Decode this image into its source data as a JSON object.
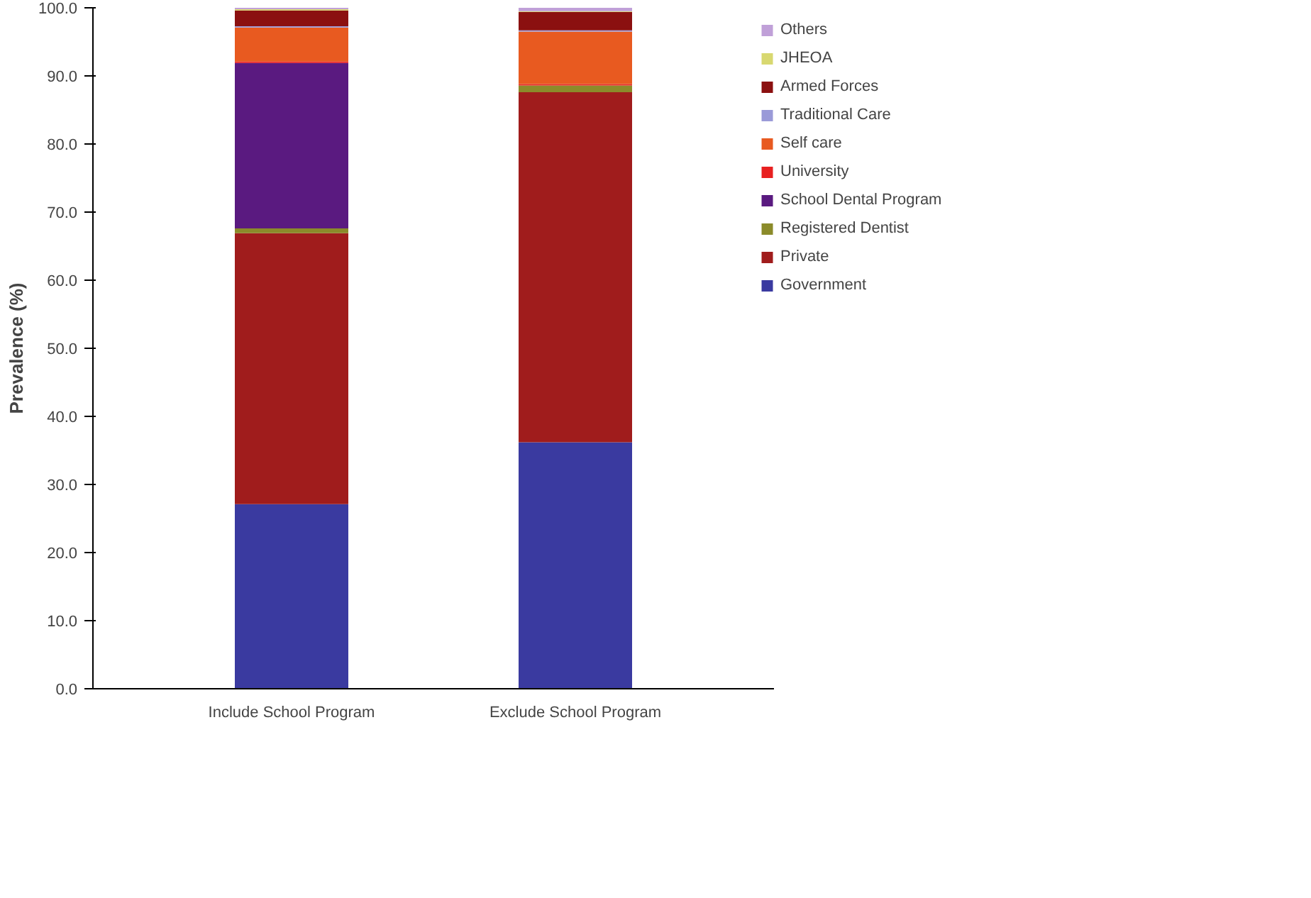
{
  "chart_data": {
    "type": "bar",
    "stacked": true,
    "ylabel": "Prevalence (%)",
    "categories": [
      "Include School Program",
      "Exclude School Program"
    ],
    "series": [
      {
        "name": "Government",
        "color": "#3a3aa0",
        "values": [
          27.1,
          36.2
        ]
      },
      {
        "name": "Private",
        "color": "#a01c1c",
        "values": [
          39.8,
          51.4
        ]
      },
      {
        "name": "Registered Dentist",
        "color": "#8b8b2a",
        "values": [
          0.7,
          1.0
        ]
      },
      {
        "name": "School Dental Program",
        "color": "#5a1a80",
        "values": [
          24.3,
          0
        ]
      },
      {
        "name": "University",
        "color": "#e82020",
        "values": [
          0.2,
          0.2
        ]
      },
      {
        "name": "Self care",
        "color": "#e85a20",
        "values": [
          5.0,
          7.7
        ]
      },
      {
        "name": "Traditional Care",
        "color": "#9a9ad8",
        "values": [
          0.2,
          0.2
        ]
      },
      {
        "name": "Armed Forces",
        "color": "#8b1010",
        "values": [
          2.3,
          2.7
        ]
      },
      {
        "name": "JHEOA",
        "color": "#d8d870",
        "values": [
          0.2,
          0.1
        ]
      },
      {
        "name": "Others",
        "color": "#c0a0d8",
        "values": [
          0.2,
          0.5
        ]
      }
    ],
    "ylim": [
      0,
      100
    ],
    "yticks": [
      {
        "value": 0,
        "label": "0.0"
      },
      {
        "value": 10,
        "label": "10.0"
      },
      {
        "value": 20,
        "label": "20.0"
      },
      {
        "value": 30,
        "label": "30.0"
      },
      {
        "value": 40,
        "label": "40.0"
      },
      {
        "value": 50,
        "label": "50.0"
      },
      {
        "value": 60,
        "label": "60.0"
      },
      {
        "value": 70,
        "label": "70.0"
      },
      {
        "value": 80,
        "label": "80.0"
      },
      {
        "value": 90,
        "label": "90.0"
      },
      {
        "value": 100,
        "label": "100.0"
      }
    ],
    "grid": false,
    "legend": "right"
  }
}
